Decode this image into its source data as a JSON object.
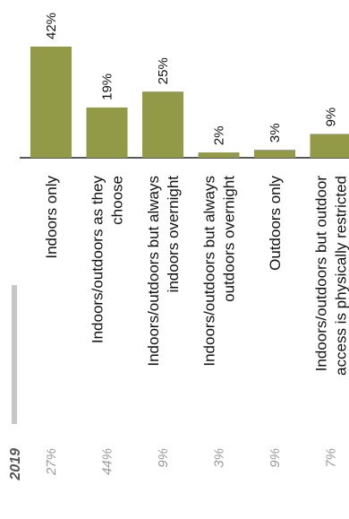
{
  "chart_data": {
    "type": "bar",
    "orientation": "vertical bars, figure rotated 90 degrees",
    "categories": [
      [
        "Indoors only"
      ],
      [
        "Indoors/outdoors as they",
        "choose"
      ],
      [
        "Indoors/outdoors but always",
        "indoors overnight"
      ],
      [
        "Indoors/outdoors but always",
        "outdoors overnight"
      ],
      [
        "Outdoors only"
      ],
      [
        "Indoors/outdoors but outdoor",
        "access is physically restricted"
      ]
    ],
    "values": [
      42,
      19,
      25,
      2,
      3,
      9
    ],
    "value_labels": [
      "42%",
      "19%",
      "25%",
      "2%",
      "3%",
      "9%"
    ],
    "bar_color": "#939a47",
    "comparison": {
      "year": "2019",
      "values": [
        "27%",
        "44%",
        "9%",
        "3%",
        "9%",
        "7%"
      ],
      "color": "#999999"
    },
    "legend_swatch_color": "#c6c6c6",
    "ylim": [
      0,
      42
    ],
    "title": "",
    "xlabel": "",
    "ylabel": "",
    "grid": false
  }
}
